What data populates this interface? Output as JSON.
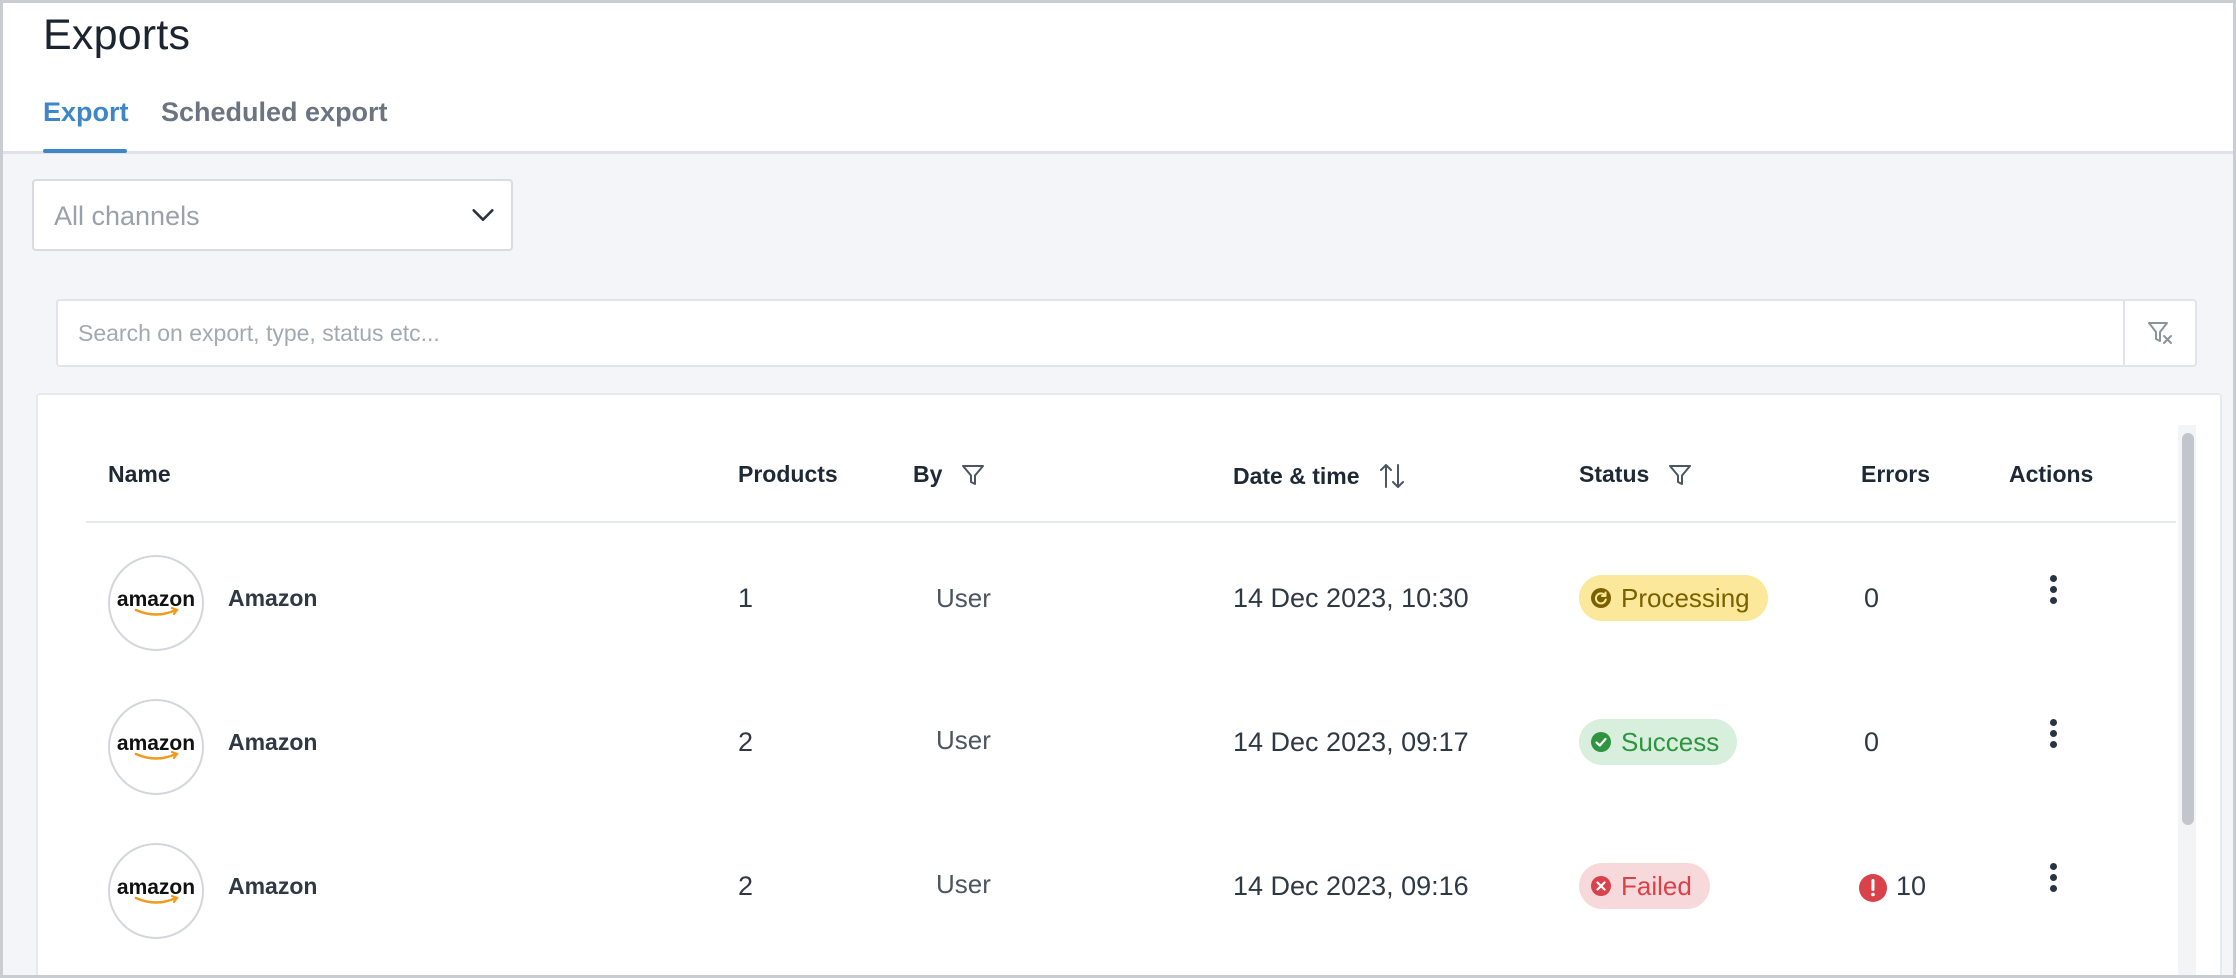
{
  "page": {
    "title": "Exports"
  },
  "tabs": [
    {
      "label": "Export",
      "active": true
    },
    {
      "label": "Scheduled export",
      "active": false
    }
  ],
  "channel_select": {
    "value": "All channels"
  },
  "search": {
    "placeholder": "Search on export, type, status etc..."
  },
  "table": {
    "columns": {
      "name": "Name",
      "products": "Products",
      "by": "By",
      "date": "Date & time",
      "status": "Status",
      "errors": "Errors",
      "actions": "Actions"
    },
    "rows": [
      {
        "logo": "amazon-logo",
        "name": "Amazon",
        "products": "1",
        "by": "User",
        "date": "14 Dec 2023, 10:30",
        "status": "Processing",
        "status_icon": "processing-icon",
        "errors": "0"
      },
      {
        "logo": "amazon-logo",
        "name": "Amazon",
        "products": "2",
        "by": "User",
        "date": "14 Dec 2023, 09:17",
        "status": "Success",
        "status_icon": "check-circle-icon",
        "errors": "0"
      },
      {
        "logo": "amazon-logo",
        "name": "Amazon",
        "products": "2",
        "by": "User",
        "date": "14 Dec 2023, 09:16",
        "status": "Failed",
        "status_icon": "x-circle-icon",
        "errors": "10",
        "error_icon": "exclamation-circle-icon"
      }
    ]
  },
  "logo_text": "amazon",
  "colors": {
    "accent": "#3d86c9",
    "processing_bg": "#fbe89a",
    "success_bg": "#d7efdc",
    "failed_bg": "#f8d9db",
    "error": "#d9424b"
  }
}
